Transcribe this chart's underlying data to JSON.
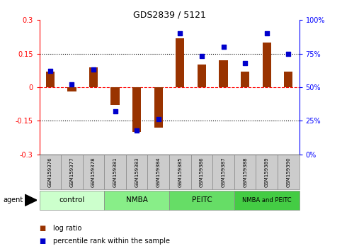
{
  "title": "GDS2839 / 5121",
  "samples": [
    "GSM159376",
    "GSM159377",
    "GSM159378",
    "GSM159381",
    "GSM159383",
    "GSM159384",
    "GSM159385",
    "GSM159386",
    "GSM159387",
    "GSM159388",
    "GSM159389",
    "GSM159390"
  ],
  "log_ratio": [
    0.07,
    -0.02,
    0.09,
    -0.08,
    -0.2,
    -0.18,
    0.22,
    0.1,
    0.12,
    0.07,
    0.2,
    0.07
  ],
  "pct_rank": [
    62,
    52,
    63,
    32,
    18,
    26,
    90,
    73,
    80,
    68,
    90,
    75
  ],
  "groups": [
    {
      "label": "control",
      "start": 0,
      "end": 3,
      "color": "#ccffcc"
    },
    {
      "label": "NMBA",
      "start": 3,
      "end": 6,
      "color": "#88ee88"
    },
    {
      "label": "PEITC",
      "start": 6,
      "end": 9,
      "color": "#66dd66"
    },
    {
      "label": "NMBA and PEITC",
      "start": 9,
      "end": 12,
      "color": "#44cc44"
    }
  ],
  "bar_color": "#993300",
  "dot_color": "#0000cc",
  "ylim_left": [
    -0.3,
    0.3
  ],
  "ylim_right": [
    0,
    100
  ],
  "yticks_left": [
    -0.3,
    -0.15,
    0.0,
    0.15,
    0.3
  ],
  "ytick_labels_left": [
    "-0.3",
    "-0.15",
    "0",
    "0.15",
    "0.3"
  ],
  "yticks_right": [
    0,
    25,
    50,
    75,
    100
  ],
  "ytick_labels_right": [
    "0%",
    "25%",
    "50%",
    "75%",
    "100%"
  ],
  "hlines_dotted": [
    -0.15,
    0.15
  ],
  "hline_zero": 0.0,
  "background_color": "#ffffff"
}
